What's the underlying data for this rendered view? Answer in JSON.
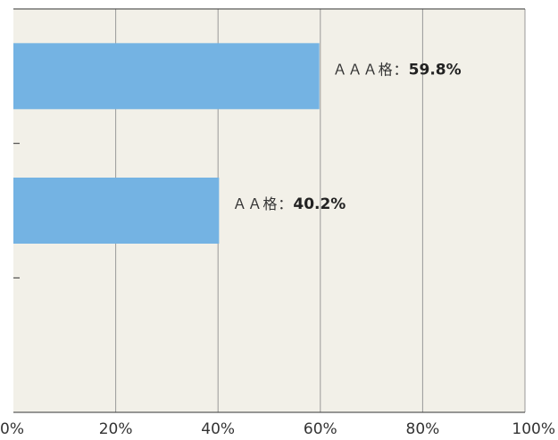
{
  "chart_data": {
    "type": "bar",
    "orientation": "horizontal",
    "categories": [
      "AAA格",
      "AA格",
      ""
    ],
    "series": [
      {
        "values": [
          59.8,
          40.2,
          null
        ]
      }
    ],
    "data_labels": [
      {
        "name": "ＡＡＡ格：",
        "value": "59.8%"
      },
      {
        "name": "ＡＡ格：",
        "value": "40.2%"
      }
    ],
    "xlim": [
      0,
      100
    ],
    "x_ticks": [
      "0%",
      "20%",
      "40%",
      "60%",
      "80%",
      "100%"
    ],
    "x_tick_values": [
      0,
      20,
      40,
      60,
      80,
      100
    ],
    "grid": true,
    "colors": {
      "bar": "#74b3e3",
      "plot_background": "#f2f0e8",
      "gridline": "#999999",
      "axis": "#333333"
    }
  }
}
